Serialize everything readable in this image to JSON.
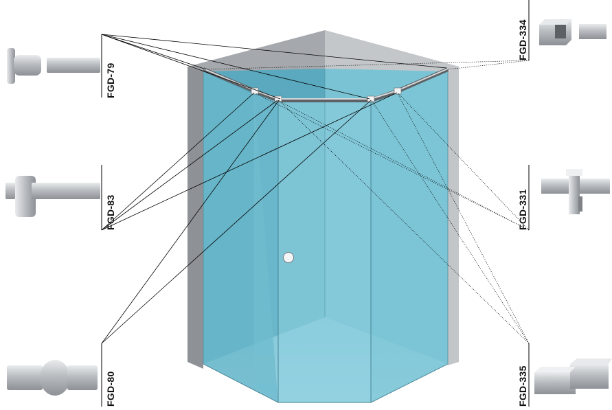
{
  "parts": [
    {
      "id": "fgd79",
      "code": "FGD-79"
    },
    {
      "id": "fgd83",
      "code": "FGD-83"
    },
    {
      "id": "fgd80",
      "code": "FGD-80"
    },
    {
      "id": "fgd334",
      "code": "FGD-334"
    },
    {
      "id": "fgd331",
      "code": "FGD-331"
    },
    {
      "id": "fgd335",
      "code": "FGD-335"
    }
  ],
  "colors": {
    "glass_front": "#7ec6d6",
    "glass_side": "#5fb0c4",
    "wall_left": "#8c8f93",
    "wall_right": "#c9ccd0",
    "ceiling": "#a9acb0",
    "floor": "#b8e4f0",
    "profile_metal": "#b6babe"
  }
}
